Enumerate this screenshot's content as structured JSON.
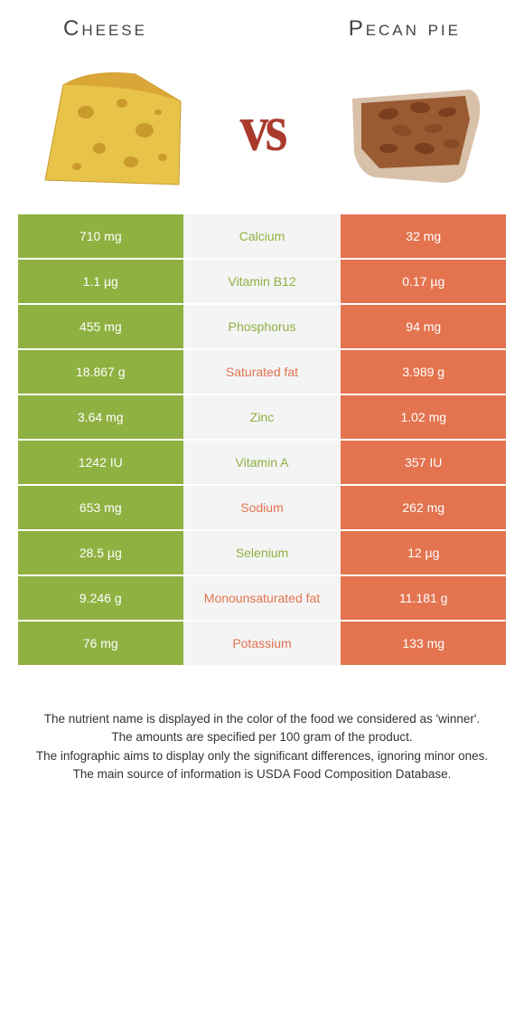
{
  "colors": {
    "left": "#8fb141",
    "right": "#e3744f",
    "midBg": "#f4f4f4"
  },
  "header": {
    "left": "Cheese",
    "right": "Pecan pie"
  },
  "vs": "vs",
  "rows": [
    {
      "left": "710 mg",
      "mid": "Calcium",
      "right": "32 mg",
      "winner": "left"
    },
    {
      "left": "1.1 µg",
      "mid": "Vitamin B12",
      "right": "0.17 µg",
      "winner": "left"
    },
    {
      "left": "455 mg",
      "mid": "Phosphorus",
      "right": "94 mg",
      "winner": "left"
    },
    {
      "left": "18.867 g",
      "mid": "Saturated fat",
      "right": "3.989 g",
      "winner": "right"
    },
    {
      "left": "3.64 mg",
      "mid": "Zinc",
      "right": "1.02 mg",
      "winner": "left"
    },
    {
      "left": "1242 IU",
      "mid": "Vitamin A",
      "right": "357 IU",
      "winner": "left"
    },
    {
      "left": "653 mg",
      "mid": "Sodium",
      "right": "262 mg",
      "winner": "right"
    },
    {
      "left": "28.5 µg",
      "mid": "Selenium",
      "right": "12 µg",
      "winner": "left"
    },
    {
      "left": "9.246 g",
      "mid": "Monounsaturated fat",
      "right": "11.181 g",
      "winner": "right"
    },
    {
      "left": "76 mg",
      "mid": "Potassium",
      "right": "133 mg",
      "winner": "right"
    }
  ],
  "footnotes": [
    "The nutrient name is displayed in the color of the food we considered as 'winner'.",
    "The amounts are specified per 100 gram of the product.",
    "The infographic aims to display only the significant differences, ignoring minor ones.",
    "The main source of information is USDA Food Composition Database."
  ]
}
